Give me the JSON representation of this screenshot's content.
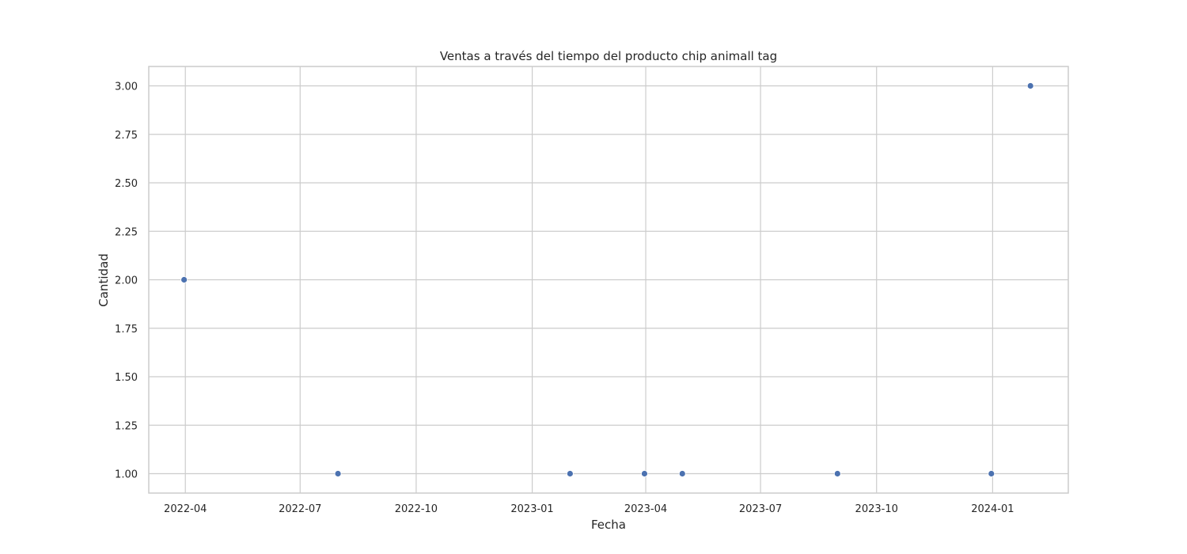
{
  "chart_data": {
    "type": "scatter",
    "title": "Ventas a través del tiempo del producto chip animall tag",
    "xlabel": "Fecha",
    "ylabel": "Cantidad",
    "x_tick_labels": [
      "2022-04",
      "2022-07",
      "2022-10",
      "2023-01",
      "2023-04",
      "2023-07",
      "2023-10",
      "2024-01"
    ],
    "y_ticks": [
      1.0,
      1.25,
      1.5,
      1.75,
      2.0,
      2.25,
      2.5,
      2.75,
      3.0
    ],
    "y_tick_labels": [
      "1.00",
      "1.25",
      "1.50",
      "1.75",
      "2.00",
      "2.25",
      "2.50",
      "2.75",
      "3.00"
    ],
    "xlim": [
      "2022-03-03",
      "2024-03-01"
    ],
    "ylim": [
      0.9,
      3.1
    ],
    "grid": true,
    "series": [
      {
        "color": "#4c72b0",
        "points": [
          {
            "x": "2022-03-31",
            "y": 2
          },
          {
            "x": "2022-07-31",
            "y": 1
          },
          {
            "x": "2023-01-31",
            "y": 1
          },
          {
            "x": "2023-03-31",
            "y": 1
          },
          {
            "x": "2023-04-30",
            "y": 1
          },
          {
            "x": "2023-08-31",
            "y": 1
          },
          {
            "x": "2023-12-31",
            "y": 1
          },
          {
            "x": "2024-01-31",
            "y": 3
          }
        ]
      }
    ]
  }
}
